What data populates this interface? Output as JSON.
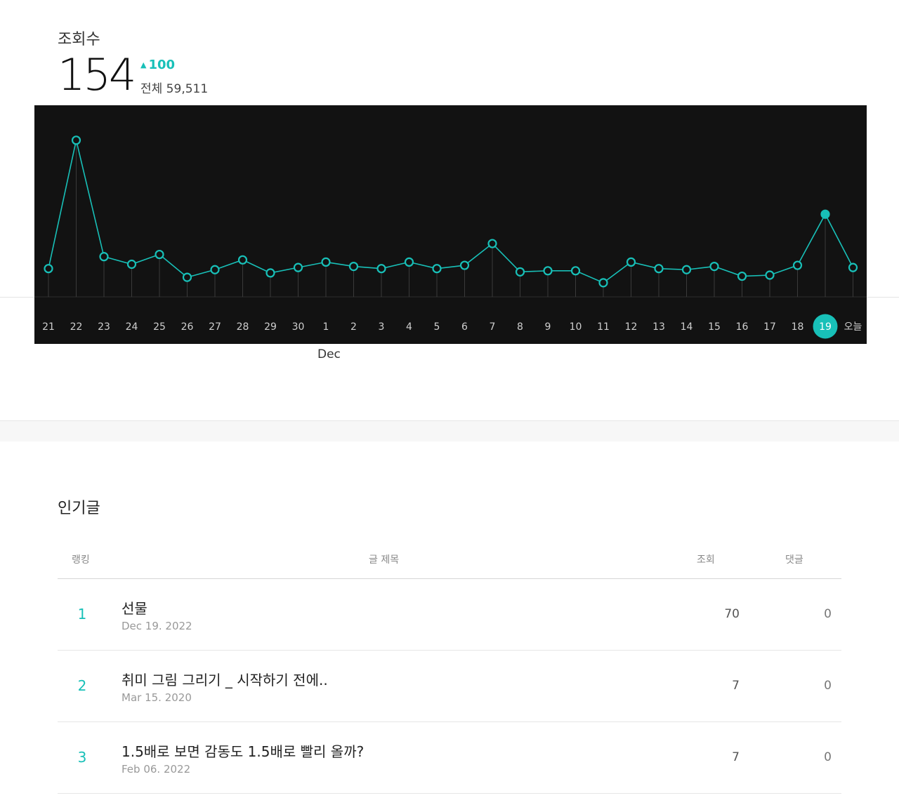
{
  "header": {
    "title": "조회수",
    "count": "154",
    "change": "100",
    "total": "전체 59,511"
  },
  "chart_data": {
    "type": "line",
    "categories": [
      "21",
      "22",
      "23",
      "24",
      "25",
      "26",
      "27",
      "28",
      "29",
      "30",
      "1",
      "2",
      "3",
      "4",
      "5",
      "6",
      "7",
      "8",
      "9",
      "10",
      "11",
      "12",
      "13",
      "14",
      "15",
      "16",
      "17",
      "18",
      "19",
      "오늘"
    ],
    "values": [
      26,
      144,
      37,
      30,
      39,
      18,
      25,
      34,
      22,
      27,
      32,
      28,
      26,
      32,
      26,
      29,
      49,
      23,
      24,
      24,
      13,
      32,
      26,
      25,
      28,
      19,
      20,
      29,
      76,
      27
    ],
    "highlight_index": 28,
    "month_label": "Dec",
    "month_label_index": 10,
    "line_color": "#18c0b8",
    "background_color": "#121212"
  },
  "popular": {
    "title": "인기글",
    "headers": {
      "rank": "랭킹",
      "title": "글 제목",
      "views": "조회",
      "comments": "댓글"
    },
    "rows": [
      {
        "rank": "1",
        "title": "선물",
        "date": "Dec 19. 2022",
        "views": "70",
        "comments": "0"
      },
      {
        "rank": "2",
        "title": "취미 그림 그리기 _ 시작하기 전에..",
        "date": "Mar 15. 2020",
        "views": "7",
        "comments": "0"
      },
      {
        "rank": "3",
        "title": "1.5배로 보면 감동도 1.5배로 빨리 올까?",
        "date": "Feb 06. 2022",
        "views": "7",
        "comments": "0"
      }
    ]
  }
}
